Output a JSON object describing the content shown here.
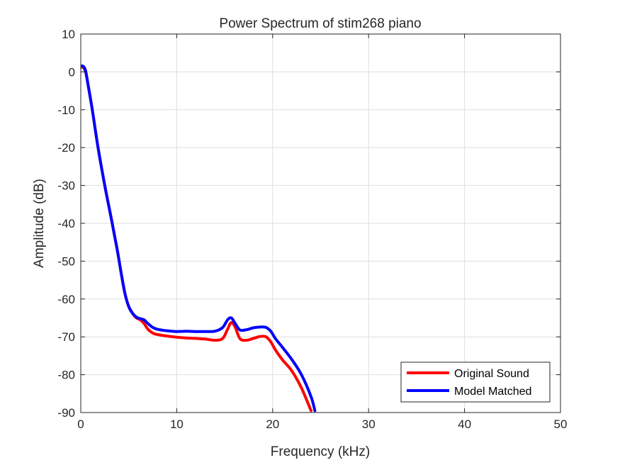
{
  "chart_data": {
    "type": "line",
    "title": "Power Spectrum of stim268 piano",
    "xlabel": "Frequency (kHz)",
    "ylabel": "Amplitude (dB)",
    "xlim": [
      0,
      50
    ],
    "ylim": [
      -90,
      10
    ],
    "xticks": [
      0,
      10,
      20,
      30,
      40,
      50
    ],
    "yticks": [
      -90,
      -80,
      -70,
      -60,
      -50,
      -40,
      -30,
      -20,
      -10,
      0,
      10
    ],
    "grid": true,
    "legend_position": "bottom-right",
    "series": [
      {
        "name": "Original Sound",
        "color": "#ff0000",
        "x": [
          0,
          0.25,
          0.5,
          0.8,
          1.2,
          1.8,
          2.5,
          3.2,
          3.8,
          4.2,
          4.6,
          5.0,
          5.4,
          5.8,
          6.2,
          6.6,
          7.0,
          7.5,
          8.0,
          9.0,
          10.0,
          11.0,
          12.0,
          13.0,
          14.0,
          14.8,
          15.3,
          15.7,
          16.1,
          16.6,
          17.3,
          18.0,
          18.7,
          19.3,
          19.8,
          20.3,
          21.0,
          22.0,
          23.0,
          24.0
        ],
        "y": [
          1.2,
          1.2,
          0,
          -4,
          -10,
          -20,
          -30,
          -39,
          -47,
          -53,
          -58.5,
          -62,
          -63.8,
          -65,
          -65.5,
          -66.5,
          -68,
          -69,
          -69.4,
          -69.8,
          -70.1,
          -70.3,
          -70.4,
          -70.6,
          -70.9,
          -70.4,
          -68,
          -66.2,
          -67.5,
          -70.5,
          -70.9,
          -70.4,
          -69.9,
          -70.0,
          -71.3,
          -73.5,
          -76,
          -79,
          -83.5,
          -89.5
        ]
      },
      {
        "name": "Model Matched",
        "color": "#0000ff",
        "x": [
          0,
          0.25,
          0.5,
          0.8,
          1.2,
          1.8,
          2.5,
          3.2,
          3.8,
          4.2,
          4.6,
          5.0,
          5.4,
          5.8,
          6.2,
          6.6,
          7.0,
          7.5,
          8.0,
          9.0,
          10.0,
          11.0,
          12.0,
          13.0,
          14.0,
          14.8,
          15.3,
          15.7,
          16.1,
          16.6,
          17.3,
          18.0,
          18.7,
          19.3,
          19.8,
          20.3,
          21.0,
          22.0,
          23.0,
          24.0,
          24.4
        ],
        "y": [
          1.5,
          1.5,
          0.3,
          -4,
          -10,
          -20,
          -30,
          -39,
          -47,
          -53,
          -58.5,
          -62,
          -63.8,
          -64.8,
          -65.2,
          -65.5,
          -66.5,
          -67.5,
          -68.0,
          -68.4,
          -68.6,
          -68.5,
          -68.6,
          -68.6,
          -68.5,
          -67.5,
          -65.5,
          -65.0,
          -66.5,
          -68.2,
          -68.1,
          -67.6,
          -67.4,
          -67.5,
          -68.5,
          -70.5,
          -72.7,
          -76,
          -80,
          -85.8,
          -89.5
        ]
      }
    ]
  }
}
